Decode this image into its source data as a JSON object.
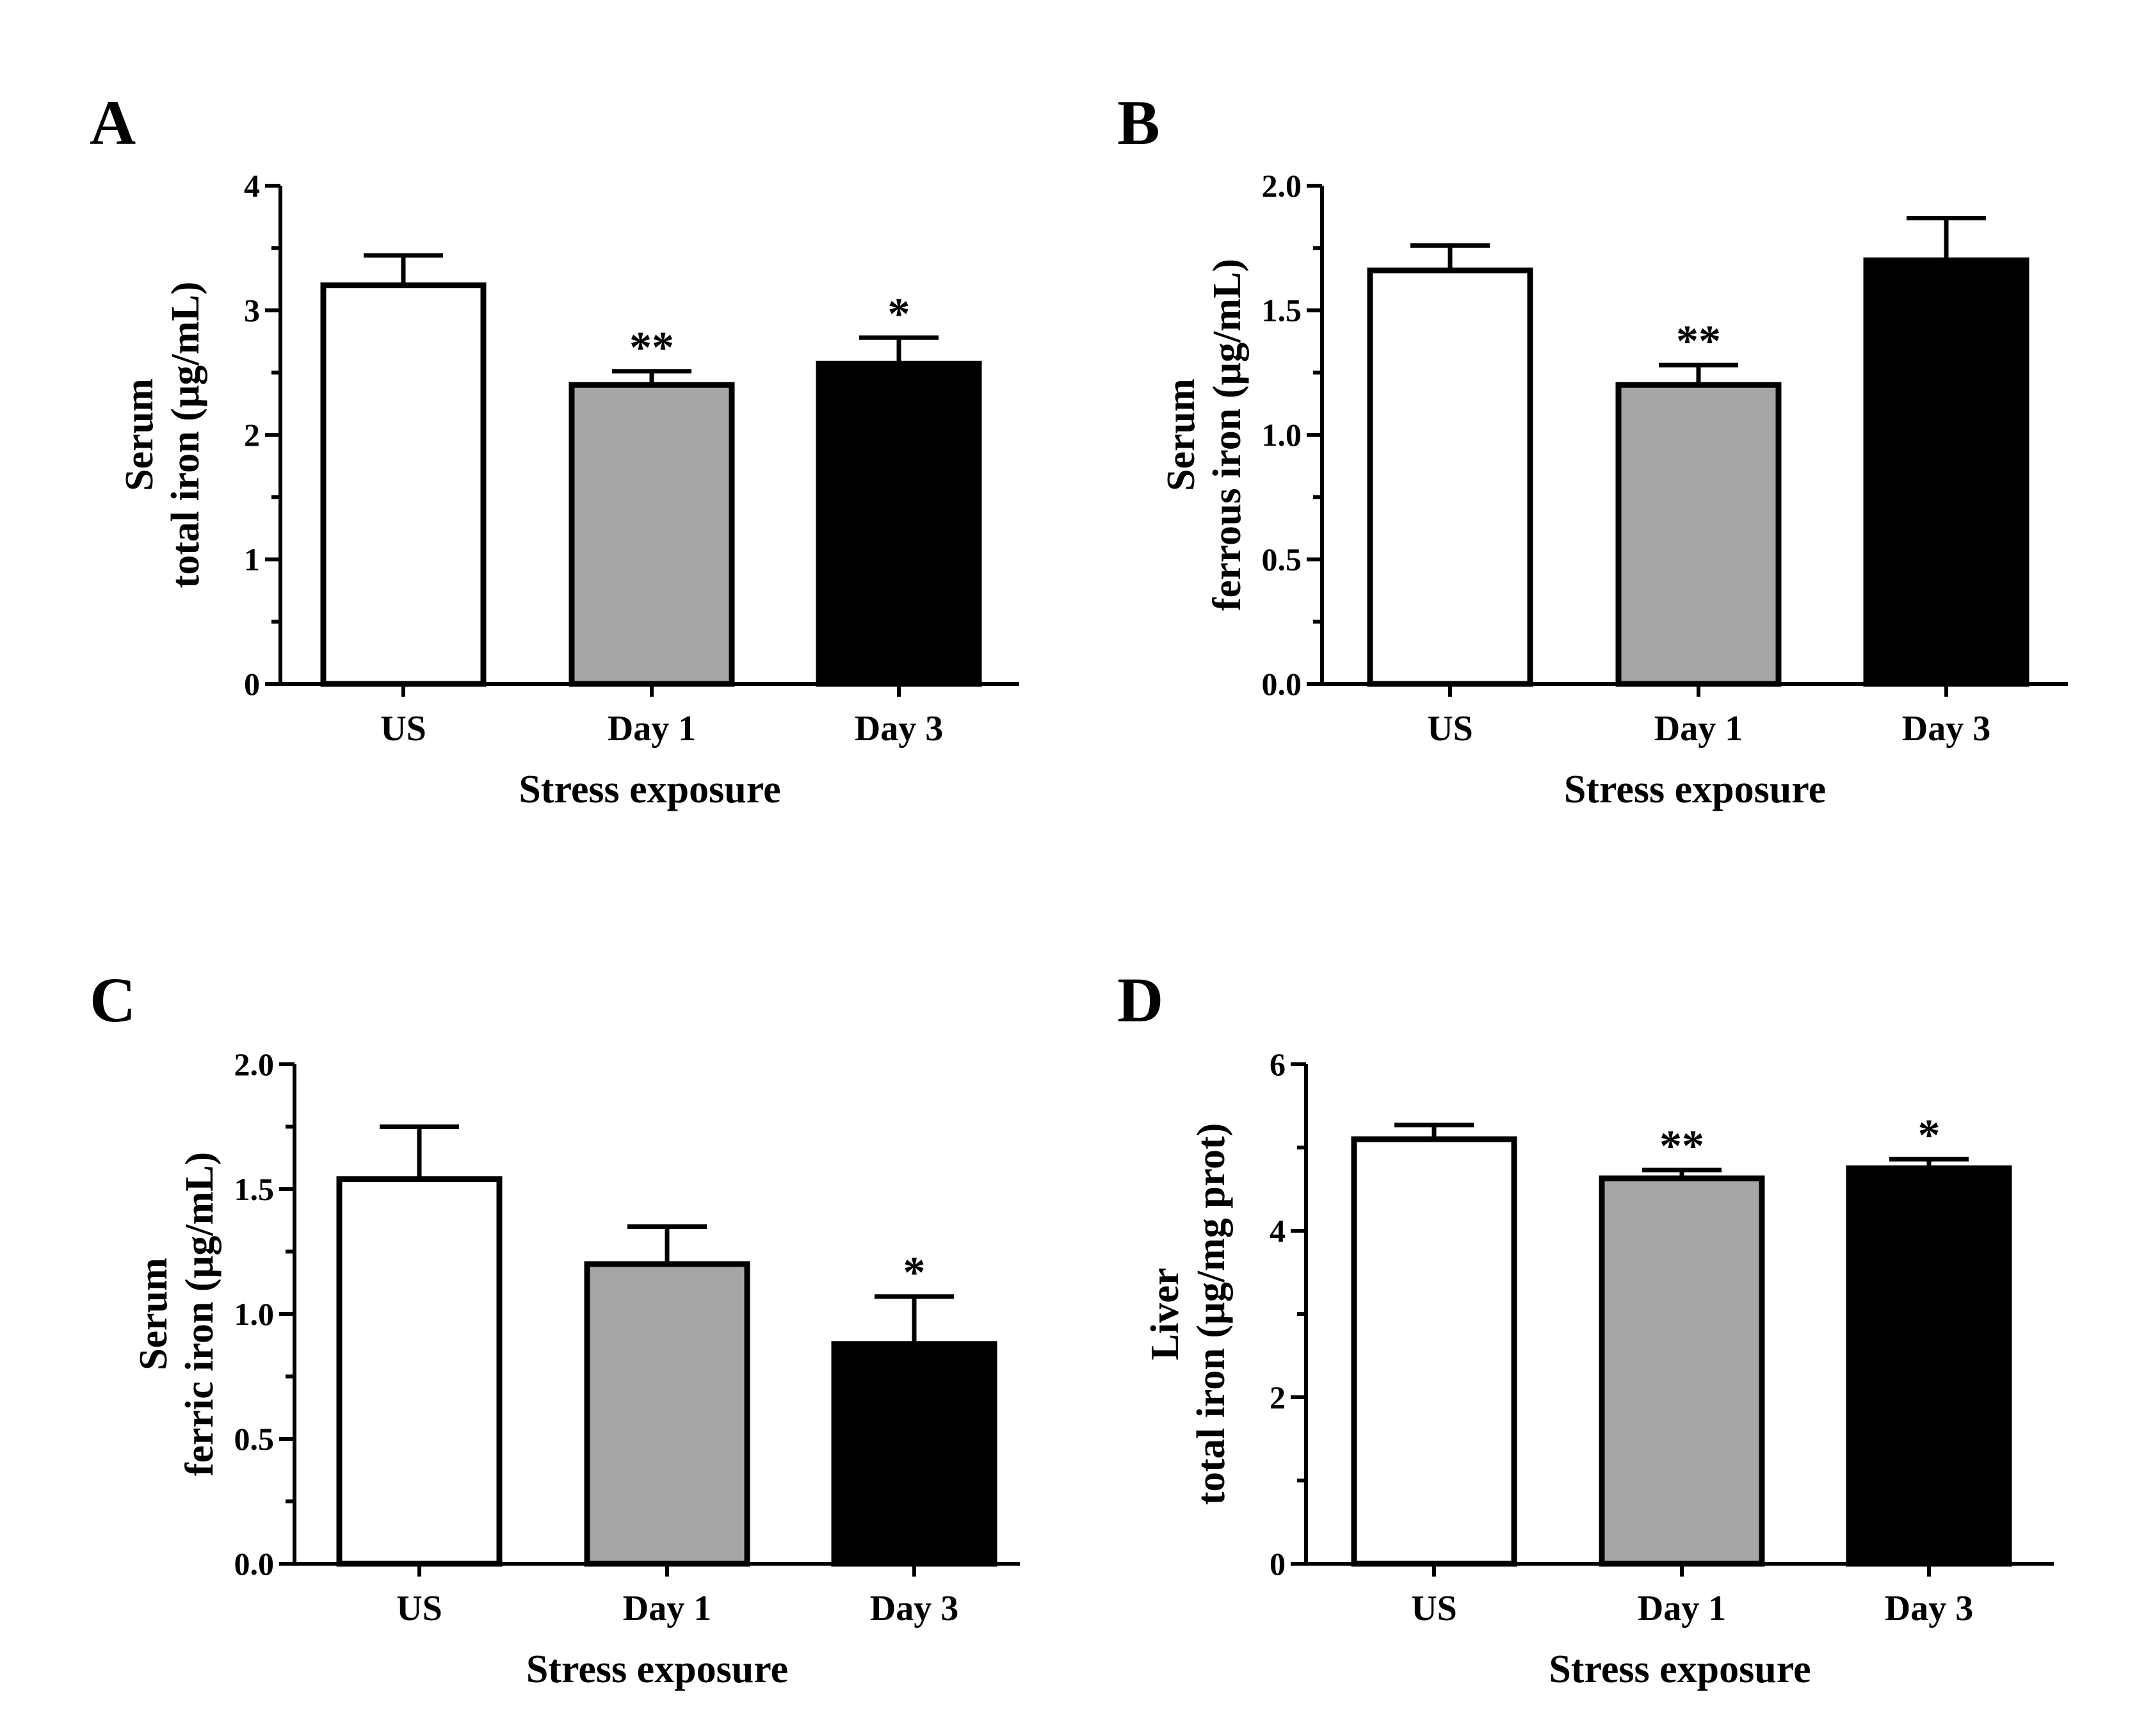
{
  "figure": {
    "background": "#ffffff"
  },
  "chart_data": [
    {
      "panel": "A",
      "type": "bar",
      "categories": [
        "US",
        "Day 1",
        "Day 3"
      ],
      "values": [
        3.2,
        2.4,
        2.57
      ],
      "errors": [
        0.24,
        0.11,
        0.21
      ],
      "significance": [
        "",
        "**",
        "*"
      ],
      "colors": [
        "#ffffff",
        "#a6a6a6",
        "#000000"
      ],
      "ylabel_line1": "Serum",
      "ylabel_line2": "total iron (µg/mL)",
      "xlabel": "Stress exposure",
      "ylim": [
        0,
        4
      ],
      "yticks": [
        "0",
        "1",
        "2",
        "3",
        "4"
      ],
      "ytick_values": [
        0,
        1,
        2,
        3,
        4
      ],
      "minor_step": 0.5
    },
    {
      "panel": "B",
      "type": "bar",
      "categories": [
        "US",
        "Day 1",
        "Day 3"
      ],
      "values": [
        1.66,
        1.2,
        1.7
      ],
      "errors": [
        0.1,
        0.08,
        0.17
      ],
      "significance": [
        "",
        "**",
        ""
      ],
      "colors": [
        "#ffffff",
        "#a6a6a6",
        "#000000"
      ],
      "ylabel_line1": "Serum",
      "ylabel_line2": "ferrous iron (µg/mL)",
      "xlabel": "Stress exposure",
      "ylim": [
        0,
        2
      ],
      "yticks": [
        "0.0",
        "0.5",
        "1.0",
        "1.5",
        "2.0"
      ],
      "ytick_values": [
        0,
        0.5,
        1,
        1.5,
        2
      ],
      "minor_step": 0.25
    },
    {
      "panel": "C",
      "type": "bar",
      "categories": [
        "US",
        "Day 1",
        "Day 3"
      ],
      "values": [
        1.54,
        1.2,
        0.88
      ],
      "errors": [
        0.21,
        0.15,
        0.19
      ],
      "significance": [
        "",
        "",
        "*"
      ],
      "colors": [
        "#ffffff",
        "#a6a6a6",
        "#000000"
      ],
      "ylabel_line1": "Serum",
      "ylabel_line2": "ferric iron (µg/mL)",
      "xlabel": "Stress exposure",
      "ylim": [
        0,
        2
      ],
      "yticks": [
        "0.0",
        "0.5",
        "1.0",
        "1.5",
        "2.0"
      ],
      "ytick_values": [
        0,
        0.5,
        1,
        1.5,
        2
      ],
      "minor_step": 0.25
    },
    {
      "panel": "D",
      "type": "bar",
      "categories": [
        "US",
        "Day 1",
        "Day 3"
      ],
      "values": [
        5.1,
        4.63,
        4.75
      ],
      "errors": [
        0.17,
        0.1,
        0.11
      ],
      "significance": [
        "",
        "**",
        "*"
      ],
      "colors": [
        "#ffffff",
        "#a6a6a6",
        "#000000"
      ],
      "ylabel_line1": "Liver",
      "ylabel_line2": "total iron (µg/mg prot)",
      "xlabel": "Stress exposure",
      "ylim": [
        0,
        6
      ],
      "yticks": [
        "0",
        "2",
        "4",
        "6"
      ],
      "ytick_values": [
        0,
        2,
        4,
        6
      ],
      "minor_step": 1
    }
  ]
}
